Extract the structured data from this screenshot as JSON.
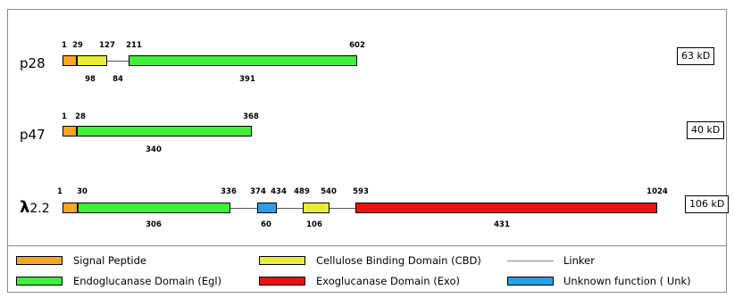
{
  "colors": {
    "signal": "#f5a623",
    "cbd": "#e8ec36",
    "egl": "#3ff03a",
    "exo": "#ec1111",
    "unk": "#2b9ee8",
    "linker": "#555555"
  },
  "proteins": [
    {
      "id": "p28",
      "name": "p28",
      "mw": "63 kD",
      "numbers": [
        "1",
        "29",
        "127",
        "211",
        "602"
      ],
      "lengths": [
        "98",
        "84",
        "391"
      ]
    },
    {
      "id": "p47",
      "name": "p47",
      "mw": "40 kD",
      "numbers": [
        "1",
        "28",
        "368"
      ],
      "lengths": [
        "340"
      ]
    },
    {
      "id": "l22",
      "name_symbol": "λ",
      "name_suffix": "2.2",
      "mw": "106 kD",
      "numbers": [
        "1",
        "30",
        "336",
        "374",
        "434",
        "489",
        "540",
        "593",
        "1024"
      ],
      "lengths": [
        "306",
        "60",
        "106",
        "431"
      ]
    }
  ],
  "legend": {
    "signal": "Signal Peptide",
    "cbd": "Cellulose Binding Domain (CBD)",
    "linker": "Linker",
    "egl": "Endoglucanase Domain (Egl)",
    "exo": "Exoglucanase Domain (Exo)",
    "unk": "Unknown function ( Unk)"
  }
}
